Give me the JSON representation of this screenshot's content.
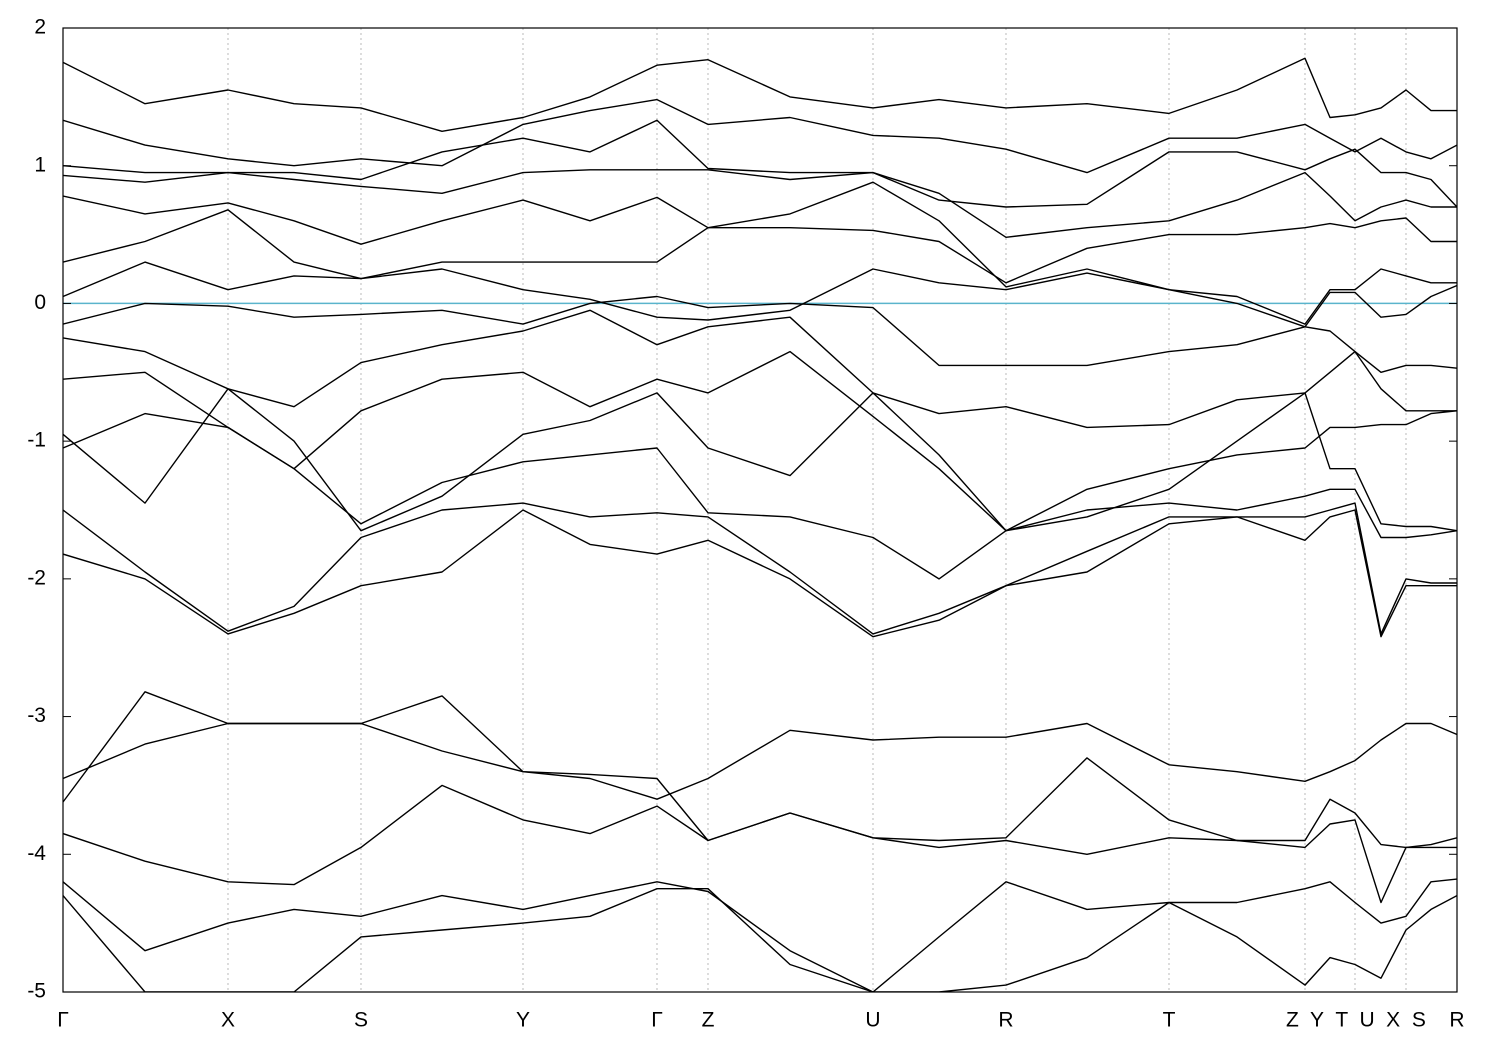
{
  "chart_data": {
    "type": "line",
    "line_color": "#000000",
    "fermi_line": {
      "value": 0,
      "color": "#5ab4cc"
    },
    "xlim": [
      0,
      1394
    ],
    "ylim": [
      -5,
      2
    ],
    "yticks": [
      -5,
      -4,
      -3,
      -2,
      -1,
      0,
      1,
      2
    ],
    "xticks": [
      {
        "value": 0,
        "label": "Γ"
      },
      {
        "value": 165,
        "label": "X"
      },
      {
        "value": 298,
        "label": "S"
      },
      {
        "value": 460,
        "label": "Y"
      },
      {
        "value": 594,
        "label": "Γ"
      },
      {
        "value": 645,
        "label": "Z"
      },
      {
        "value": 810,
        "label": "U"
      },
      {
        "value": 943,
        "label": "R"
      },
      {
        "value": 1106,
        "label": "T"
      },
      {
        "value": 1242,
        "label": "Z  Y"
      },
      {
        "value": 1292,
        "label": "T  U"
      },
      {
        "value": 1343,
        "label": "X  S"
      },
      {
        "value": 1394,
        "label": "R"
      }
    ],
    "grid": true,
    "x": [
      0,
      82,
      165,
      231,
      298,
      379,
      460,
      527,
      594,
      645,
      727,
      810,
      876,
      943,
      1024,
      1106,
      1174,
      1242,
      1267,
      1292,
      1318,
      1343,
      1368,
      1394
    ],
    "series": [
      {
        "values": [
          1.75,
          1.45,
          1.55,
          1.45,
          1.42,
          1.25,
          1.35,
          1.5,
          1.73,
          1.77,
          1.5,
          1.42,
          1.48,
          1.42,
          1.45,
          1.38,
          1.55,
          1.78,
          1.35,
          1.37,
          1.42,
          1.55,
          1.4,
          1.4
        ]
      },
      {
        "values": [
          1.33,
          1.15,
          1.05,
          1.0,
          1.05,
          1.0,
          1.3,
          1.4,
          1.48,
          1.3,
          1.35,
          1.22,
          1.2,
          1.12,
          0.95,
          1.2,
          1.2,
          1.3,
          1.2,
          1.1,
          1.2,
          1.1,
          1.05,
          1.15
        ]
      },
      {
        "values": [
          1.0,
          0.95,
          0.95,
          0.95,
          0.9,
          1.1,
          1.2,
          1.1,
          1.33,
          0.98,
          0.95,
          0.95,
          0.75,
          0.7,
          0.72,
          1.1,
          1.1,
          0.97,
          1.05,
          1.12,
          0.95,
          0.95,
          0.9,
          0.7
        ]
      },
      {
        "values": [
          0.93,
          0.88,
          0.95,
          0.9,
          0.85,
          0.8,
          0.95,
          0.97,
          0.97,
          0.97,
          0.9,
          0.95,
          0.8,
          0.48,
          0.55,
          0.6,
          0.75,
          0.95,
          0.78,
          0.6,
          0.7,
          0.75,
          0.7,
          0.7
        ]
      },
      {
        "values": [
          0.78,
          0.65,
          0.73,
          0.6,
          0.43,
          0.6,
          0.75,
          0.6,
          0.77,
          0.55,
          0.55,
          0.53,
          0.45,
          0.15,
          0.4,
          0.5,
          0.5,
          0.55,
          0.58,
          0.55,
          0.6,
          0.62,
          0.45,
          0.45
        ]
      },
      {
        "values": [
          0.3,
          0.45,
          0.68,
          0.3,
          0.18,
          0.3,
          0.3,
          0.3,
          0.3,
          0.55,
          0.65,
          0.88,
          0.6,
          0.12,
          0.25,
          0.1,
          0.05,
          -0.15,
          0.1,
          0.1,
          0.25,
          0.2,
          0.15,
          0.15
        ]
      },
      {
        "values": [
          0.05,
          0.3,
          0.1,
          0.2,
          0.18,
          0.25,
          0.1,
          0.03,
          -0.1,
          -0.12,
          -0.05,
          0.25,
          0.15,
          0.1,
          0.22,
          0.1,
          0.0,
          -0.17,
          0.08,
          0.08,
          -0.1,
          -0.08,
          0.05,
          0.13
        ]
      },
      {
        "values": [
          -0.15,
          0.0,
          -0.02,
          -0.1,
          -0.08,
          -0.05,
          -0.15,
          0.0,
          0.05,
          -0.03,
          0.0,
          -0.03,
          -0.45,
          -0.45,
          -0.45,
          -0.35,
          -0.3,
          -0.17,
          -0.2,
          -0.35,
          -0.5,
          -0.45,
          -0.45,
          -0.47
        ]
      },
      {
        "values": [
          -0.25,
          -0.35,
          -0.62,
          -0.75,
          -0.43,
          -0.3,
          -0.2,
          -0.05,
          -0.3,
          -0.17,
          -0.1,
          -0.65,
          -0.8,
          -0.75,
          -0.9,
          -0.88,
          -0.7,
          -0.65,
          -0.5,
          -0.35,
          -0.62,
          -0.78,
          -0.78,
          -0.78
        ]
      },
      {
        "values": [
          -0.55,
          -0.5,
          -0.9,
          -1.2,
          -0.78,
          -0.55,
          -0.5,
          -0.75,
          -0.55,
          -0.65,
          -0.35,
          -0.82,
          -1.2,
          -1.65,
          -1.35,
          -1.2,
          -1.1,
          -1.05,
          -0.9,
          -0.9,
          -0.88,
          -0.88,
          -0.8,
          -0.78
        ]
      },
      {
        "values": [
          -0.95,
          -1.45,
          -0.62,
          -1.0,
          -1.65,
          -1.4,
          -0.95,
          -0.85,
          -0.65,
          -1.05,
          -1.25,
          -0.65,
          -1.1,
          -1.65,
          -1.55,
          -1.35,
          -1.0,
          -0.65,
          -1.2,
          -1.2,
          -1.6,
          -1.62,
          -1.62,
          -1.65
        ]
      },
      {
        "values": [
          -1.05,
          -0.8,
          -0.9,
          -1.2,
          -1.6,
          -1.3,
          -1.15,
          -1.1,
          -1.05,
          -1.52,
          -1.55,
          -1.7,
          -2.0,
          -1.65,
          -1.5,
          -1.45,
          -1.5,
          -1.4,
          -1.35,
          -1.35,
          -1.7,
          -1.7,
          -1.68,
          -1.65
        ]
      },
      {
        "values": [
          -1.5,
          -1.95,
          -2.38,
          -2.2,
          -1.7,
          -1.5,
          -1.45,
          -1.55,
          -1.52,
          -1.55,
          -1.95,
          -2.4,
          -2.25,
          -2.05,
          -1.8,
          -1.55,
          -1.55,
          -1.55,
          -1.5,
          -1.45,
          -2.4,
          -2.0,
          -2.03,
          -2.03
        ]
      },
      {
        "values": [
          -1.82,
          -2.0,
          -2.4,
          -2.25,
          -2.05,
          -1.95,
          -1.5,
          -1.75,
          -1.82,
          -1.72,
          -2.0,
          -2.42,
          -2.3,
          -2.05,
          -1.95,
          -1.6,
          -1.55,
          -1.72,
          -1.55,
          -1.5,
          -2.42,
          -2.05,
          -2.05,
          -2.05
        ]
      },
      {
        "values": [
          -3.45,
          -3.2,
          -3.05,
          -3.05,
          -3.05,
          -2.85,
          -3.4,
          -3.45,
          -3.6,
          -3.45,
          -3.1,
          -3.17,
          -3.15,
          -3.15,
          -3.05,
          -3.35,
          -3.4,
          -3.47,
          -3.4,
          -3.32,
          -3.17,
          -3.05,
          -3.05,
          -3.13
        ]
      },
      {
        "values": [
          -3.62,
          -2.82,
          -3.05,
          -3.05,
          -3.05,
          -3.25,
          -3.4,
          -3.42,
          -3.45,
          -3.9,
          -3.7,
          -3.88,
          -3.9,
          -3.88,
          -3.3,
          -3.75,
          -3.9,
          -3.9,
          -3.6,
          -3.7,
          -3.93,
          -3.95,
          -3.93,
          -3.88
        ]
      },
      {
        "values": [
          -3.85,
          -4.05,
          -4.2,
          -4.22,
          -3.95,
          -3.5,
          -3.75,
          -3.85,
          -3.65,
          -3.9,
          -3.7,
          -3.88,
          -3.95,
          -3.9,
          -4.0,
          -3.88,
          -3.9,
          -3.95,
          -3.78,
          -3.75,
          -4.35,
          -3.95,
          -3.95,
          -3.95
        ]
      },
      {
        "values": [
          -4.2,
          -4.7,
          -4.5,
          -4.4,
          -4.45,
          -4.3,
          -4.4,
          -4.3,
          -4.2,
          -4.27,
          -4.7,
          -5.0,
          -4.6,
          -4.2,
          -4.4,
          -4.35,
          -4.35,
          -4.25,
          -4.2,
          -4.35,
          -4.5,
          -4.45,
          -4.2,
          -4.18
        ]
      },
      {
        "values": [
          -4.3,
          -5.0,
          -5.0,
          -5.0,
          -4.6,
          -4.55,
          -4.5,
          -4.45,
          -4.25,
          -4.25,
          -4.8,
          -5.0,
          -5.0,
          -4.95,
          -4.75,
          -4.35,
          -4.6,
          -4.95,
          -4.75,
          -4.8,
          -4.9,
          -4.55,
          -4.4,
          -4.3
        ]
      }
    ]
  }
}
